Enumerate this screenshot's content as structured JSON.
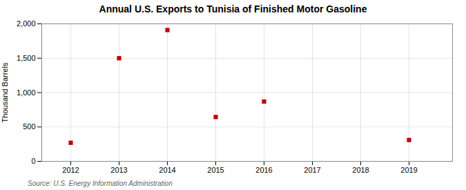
{
  "chart_data": {
    "type": "scatter",
    "title": "Annual U.S. Exports to Tunisia of Finished Motor Gasoline",
    "ylabel": "Thousand Barrels",
    "annotation": "Source: U.S. Energy Information Administration",
    "x": [
      2012,
      2013,
      2014,
      2015,
      2016,
      2019
    ],
    "values": [
      270,
      1500,
      1910,
      645,
      870,
      310
    ],
    "color": "#c00000",
    "marker": "square",
    "xlim": [
      2011.4,
      2019.9
    ],
    "xticks": [
      2012,
      2013,
      2014,
      2015,
      2016,
      2017,
      2018,
      2019
    ],
    "ylim": [
      0,
      2000
    ],
    "yticks": [
      0,
      500,
      {
        "value": 1000,
        "label": "1,000"
      },
      {
        "value": 1500,
        "label": "1,500"
      },
      {
        "value": 2000,
        "label": "2,000"
      }
    ],
    "grid": true
  }
}
